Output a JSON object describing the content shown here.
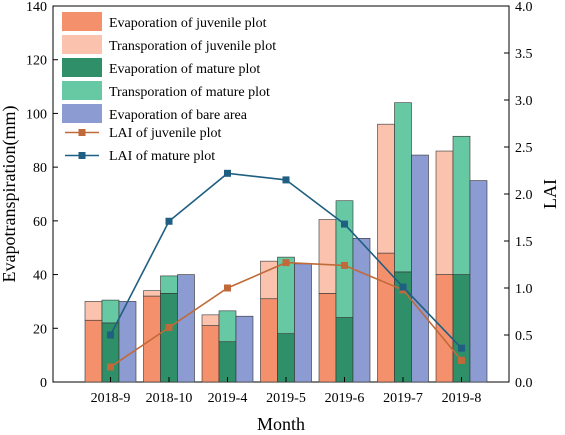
{
  "chart_data": {
    "type": "bar",
    "title": "",
    "xlabel": "Month",
    "ylabel": "Evapotranspiration(mm)",
    "y2label": "LAI",
    "categories": [
      "2018-9",
      "2018-10",
      "2019-4",
      "2019-5",
      "2019-6",
      "2019-7",
      "2019-8"
    ],
    "ylim": [
      0,
      140
    ],
    "y2lim": [
      0,
      4.0
    ],
    "yticks": [
      "0",
      "20",
      "40",
      "60",
      "80",
      "100",
      "120",
      "140"
    ],
    "y2ticks": [
      "0.0",
      "0.5",
      "1.0",
      "1.5",
      "2.0",
      "2.5",
      "3.0",
      "3.5",
      "4.0"
    ],
    "legend_position": "top-left",
    "bar_groups": [
      {
        "name": "juvenile plot",
        "stack": [
          {
            "name": "Evaporation of juvenile plot",
            "color": "#F4906C",
            "values": [
              23,
              32,
              21,
              31,
              33,
              48,
              40
            ]
          },
          {
            "name": "Transporation of juvenile plot",
            "color": "#FBC3AE",
            "values": [
              7,
              2,
              4,
              14,
              27.5,
              48,
              46
            ]
          }
        ]
      },
      {
        "name": "mature plot",
        "stack": [
          {
            "name": "Evaporation of mature plot",
            "color": "#2E8F68",
            "values": [
              22,
              33,
              15,
              18,
              24,
              41,
              40
            ]
          },
          {
            "name": "Transporation of mature plot",
            "color": "#66C9A3",
            "values": [
              8.5,
              6.5,
              11.5,
              28.5,
              43.5,
              63,
              51.5
            ]
          }
        ]
      },
      {
        "name": "bare area",
        "stack": [
          {
            "name": "Evaporation of bare area",
            "color": "#8C9BD1",
            "values": [
              30,
              40,
              24.5,
              44,
              53.5,
              84.5,
              75
            ]
          }
        ]
      }
    ],
    "line_series": [
      {
        "name": "LAI of juvenile plot",
        "color": "#C06A3A",
        "axis": "right",
        "values": [
          0.16,
          0.58,
          1.0,
          1.27,
          1.24,
          0.98,
          0.23
        ]
      },
      {
        "name": "LAI of mature plot",
        "color": "#1F5F82",
        "axis": "right",
        "values": [
          0.5,
          1.71,
          2.22,
          2.15,
          1.68,
          1.01,
          0.36
        ]
      }
    ]
  }
}
